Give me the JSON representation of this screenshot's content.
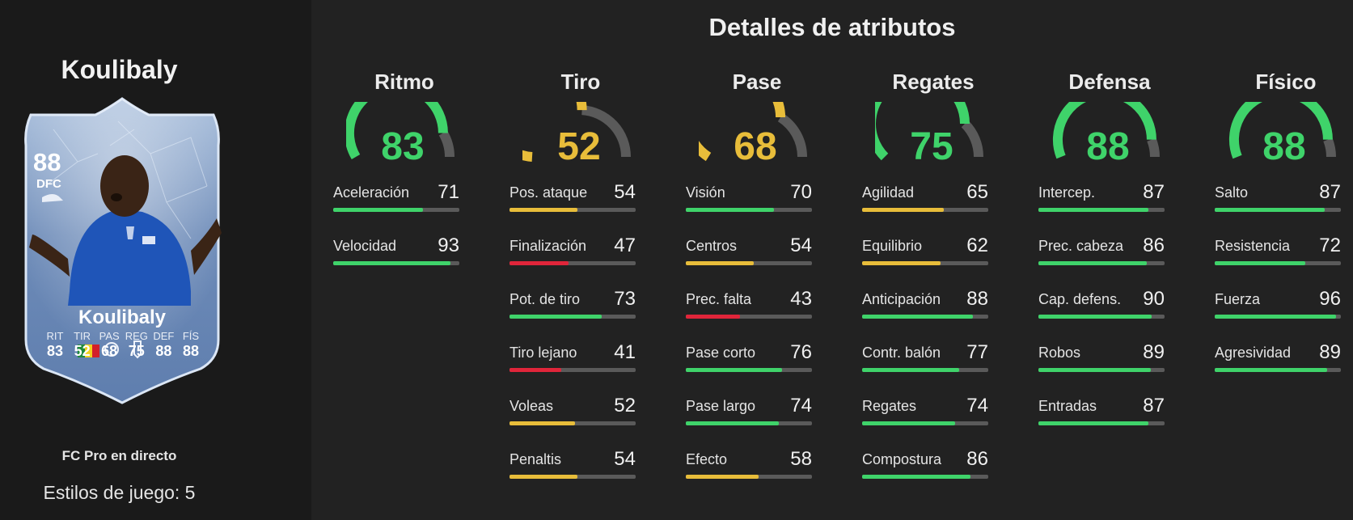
{
  "player": {
    "name": "Koulibaly",
    "rating": "88",
    "position": "DFC",
    "program": "FC Pro en directo",
    "playstyles": "Estilos de juego: 5",
    "card_stats": [
      {
        "label": "RIT",
        "value": "83"
      },
      {
        "label": "TIR",
        "value": "52"
      },
      {
        "label": "PAS",
        "value": "68"
      },
      {
        "label": "REG",
        "value": "75"
      },
      {
        "label": "DEF",
        "value": "88"
      },
      {
        "label": "FÍS",
        "value": "88"
      }
    ]
  },
  "section_title": "Detalles de atributos",
  "colors": {
    "high": "#3fd36a",
    "mid": "#e8bd3a",
    "low": "#e0253a",
    "track": "#5a5a5a"
  },
  "categories": [
    {
      "name": "Ritmo",
      "value": 83,
      "attrs": [
        {
          "label": "Aceleración",
          "value": 71
        },
        {
          "label": "Velocidad",
          "value": 93
        }
      ]
    },
    {
      "name": "Tiro",
      "value": 52,
      "attrs": [
        {
          "label": "Pos. ataque",
          "value": 54
        },
        {
          "label": "Finalización",
          "value": 47
        },
        {
          "label": "Pot. de tiro",
          "value": 73
        },
        {
          "label": "Tiro lejano",
          "value": 41
        },
        {
          "label": "Voleas",
          "value": 52
        },
        {
          "label": "Penaltis",
          "value": 54
        }
      ]
    },
    {
      "name": "Pase",
      "value": 68,
      "attrs": [
        {
          "label": "Visión",
          "value": 70
        },
        {
          "label": "Centros",
          "value": 54
        },
        {
          "label": "Prec. falta",
          "value": 43
        },
        {
          "label": "Pase corto",
          "value": 76
        },
        {
          "label": "Pase largo",
          "value": 74
        },
        {
          "label": "Efecto",
          "value": 58
        }
      ]
    },
    {
      "name": "Regates",
      "value": 75,
      "attrs": [
        {
          "label": "Agilidad",
          "value": 65
        },
        {
          "label": "Equilibrio",
          "value": 62
        },
        {
          "label": "Anticipación",
          "value": 88
        },
        {
          "label": "Contr. balón",
          "value": 77
        },
        {
          "label": "Regates",
          "value": 74
        },
        {
          "label": "Compostura",
          "value": 86
        }
      ]
    },
    {
      "name": "Defensa",
      "value": 88,
      "attrs": [
        {
          "label": "Intercep.",
          "value": 87
        },
        {
          "label": "Prec. cabeza",
          "value": 86
        },
        {
          "label": "Cap. defens.",
          "value": 90
        },
        {
          "label": "Robos",
          "value": 89
        },
        {
          "label": "Entradas",
          "value": 87
        }
      ]
    },
    {
      "name": "Físico",
      "value": 88,
      "attrs": [
        {
          "label": "Salto",
          "value": 87
        },
        {
          "label": "Resistencia",
          "value": 72
        },
        {
          "label": "Fuerza",
          "value": 96
        },
        {
          "label": "Agresividad",
          "value": 89
        }
      ]
    }
  ]
}
